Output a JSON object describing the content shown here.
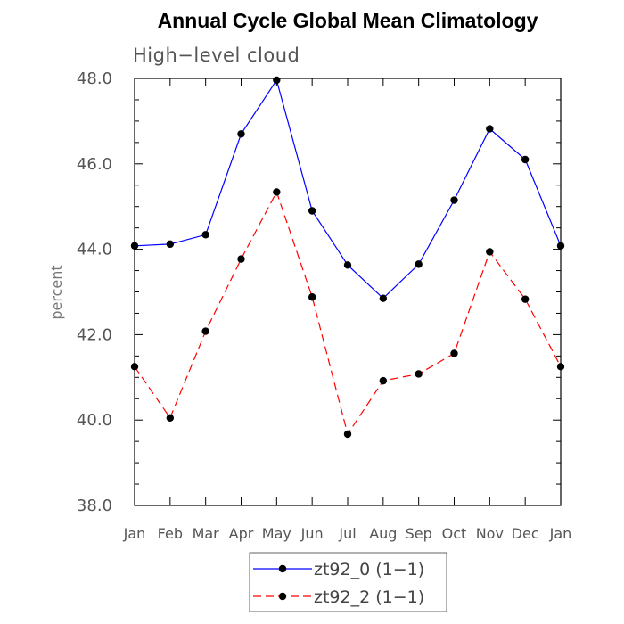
{
  "chart_data": {
    "type": "line",
    "title": "Annual Cycle Global Mean Climatology",
    "subtitle": "High−level cloud",
    "xlabel": "",
    "ylabel": "percent",
    "categories": [
      "Jan",
      "Feb",
      "Mar",
      "Apr",
      "May",
      "Jun",
      "Jul",
      "Aug",
      "Sep",
      "Oct",
      "Nov",
      "Dec",
      "Jan"
    ],
    "ylim": [
      38.0,
      48.0
    ],
    "yticks": [
      "38.0",
      "40.0",
      "42.0",
      "44.0",
      "46.0",
      "48.0"
    ],
    "grid": false,
    "legend_position": "bottom-center",
    "series": [
      {
        "name": "zt92_0 (1−1)",
        "color": "#0000ff",
        "line_style": "solid",
        "marker": "filled-circle",
        "values": [
          44.08,
          44.12,
          44.34,
          46.7,
          47.96,
          44.9,
          43.63,
          42.85,
          43.65,
          45.15,
          46.82,
          46.1,
          44.08
        ]
      },
      {
        "name": "zt92_2 (1−1)",
        "color": "#ff0000",
        "line_style": "dashed",
        "marker": "filled-circle",
        "values": [
          41.25,
          40.05,
          42.08,
          43.77,
          45.34,
          42.88,
          39.67,
          40.92,
          41.08,
          41.56,
          43.94,
          42.83,
          41.25
        ]
      }
    ]
  }
}
